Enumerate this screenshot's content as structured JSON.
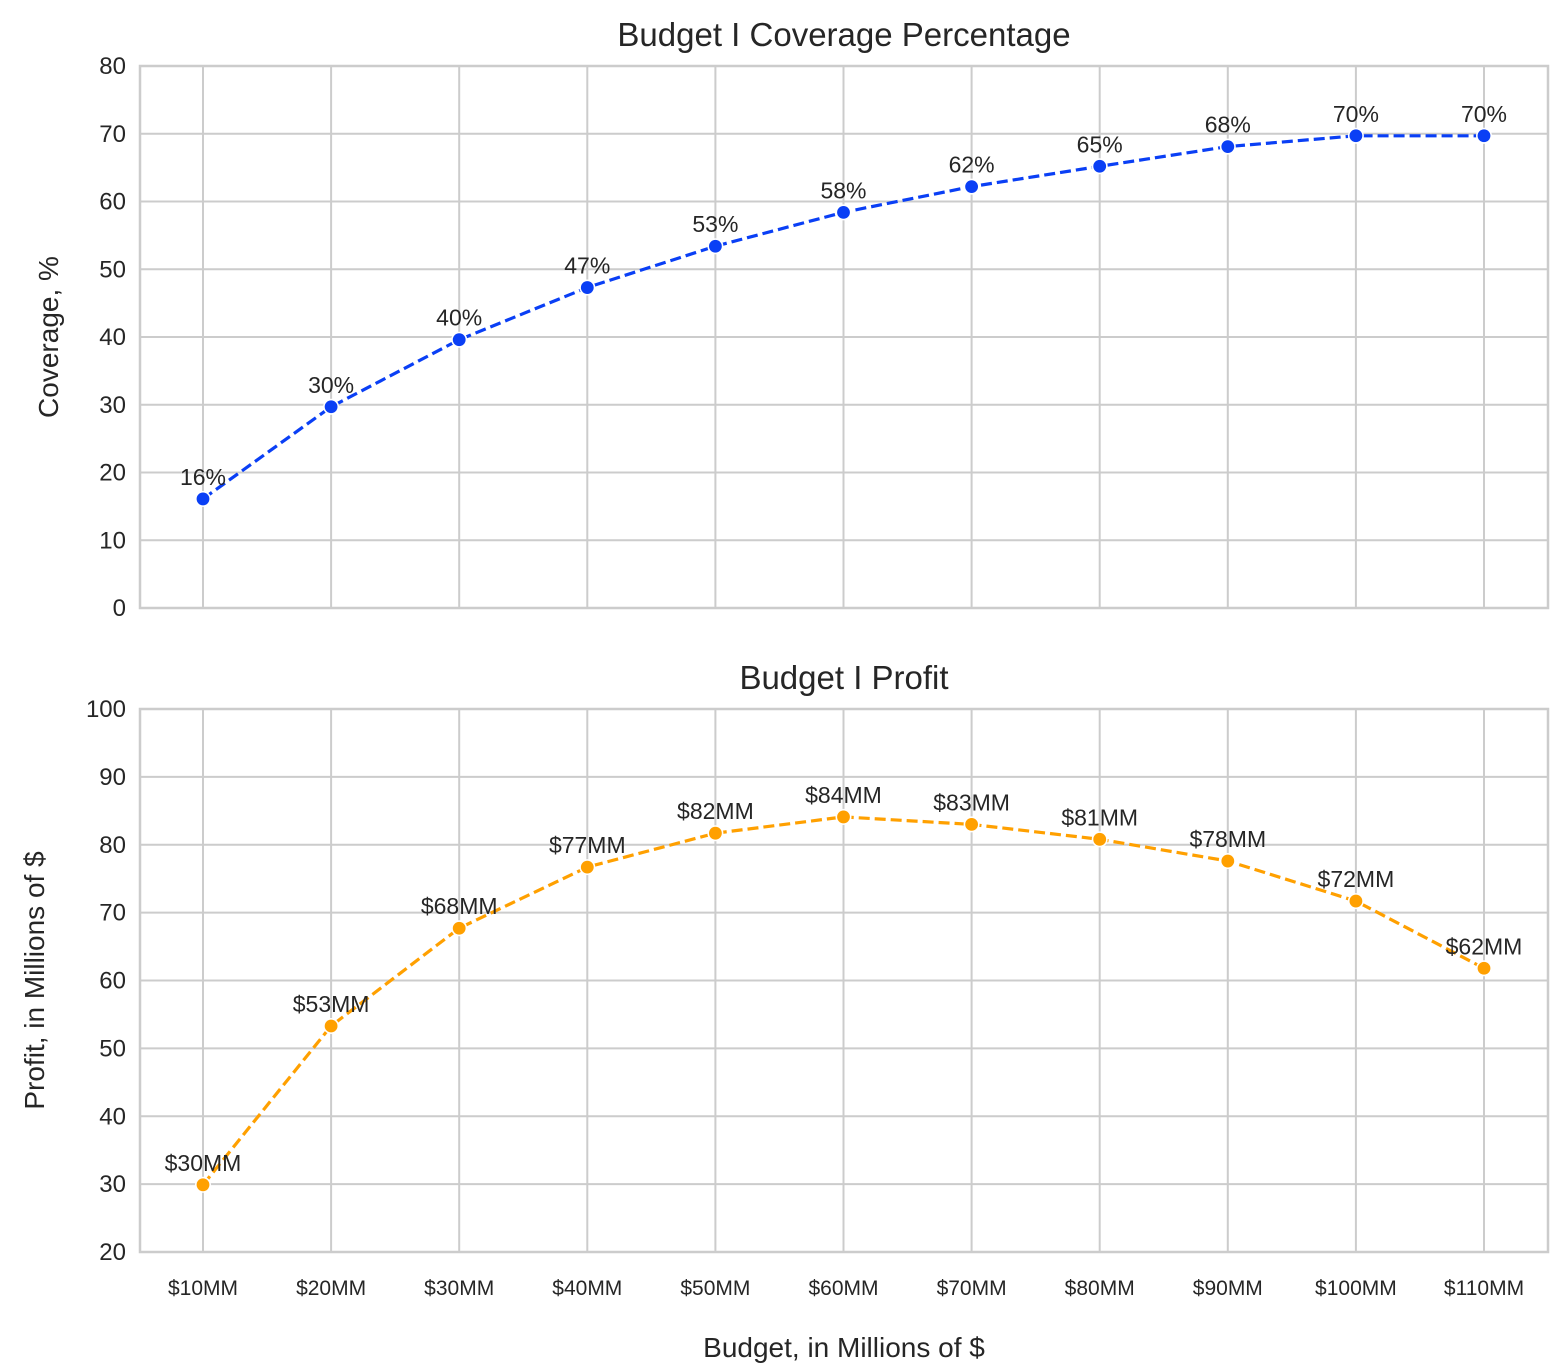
{
  "chart_data": [
    {
      "type": "line",
      "title": "Budget I Coverage Percentage",
      "ylabel": "Coverage, %",
      "xlabel": "",
      "ylim": [
        0,
        80
      ],
      "yticks": [
        0,
        10,
        20,
        30,
        40,
        50,
        60,
        70,
        80
      ],
      "categories": [
        "$10MM",
        "$20MM",
        "$30MM",
        "$40MM",
        "$50MM",
        "$60MM",
        "$70MM",
        "$80MM",
        "$90MM",
        "$100MM",
        "$110MM"
      ],
      "show_tick_labels": false,
      "grid": true,
      "series": [
        {
          "values": [
            16.1,
            29.7,
            39.6,
            47.3,
            53.4,
            58.4,
            62.2,
            65.2,
            68.1,
            69.7,
            69.7
          ],
          "labels": [
            "16%",
            "30%",
            "40%",
            "47%",
            "53%",
            "58%",
            "62%",
            "65%",
            "68%",
            "70%",
            "70%"
          ],
          "color": "#0a3ff5",
          "line_style": "dashed",
          "marker": "circle"
        }
      ]
    },
    {
      "type": "line",
      "title": "Budget I Profit",
      "ylabel": "Profit, in Millions of $",
      "xlabel": "Budget, in Millions of $",
      "ylim": [
        20,
        100
      ],
      "yticks": [
        20,
        30,
        40,
        50,
        60,
        70,
        80,
        90,
        100
      ],
      "categories": [
        "$10MM",
        "$20MM",
        "$30MM",
        "$40MM",
        "$50MM",
        "$60MM",
        "$70MM",
        "$80MM",
        "$90MM",
        "$100MM",
        "$110MM"
      ],
      "show_tick_labels": true,
      "grid": true,
      "series": [
        {
          "values": [
            29.9,
            53.3,
            67.7,
            76.7,
            81.7,
            84.1,
            83.0,
            80.8,
            77.6,
            71.7,
            61.8
          ],
          "labels": [
            "$30MM",
            "$53MM",
            "$68MM",
            "$77MM",
            "$82MM",
            "$84MM",
            "$83MM",
            "$81MM",
            "$78MM",
            "$72MM",
            "$62MM"
          ],
          "color": "#ffa000",
          "line_style": "dashed",
          "marker": "circle"
        }
      ]
    }
  ]
}
